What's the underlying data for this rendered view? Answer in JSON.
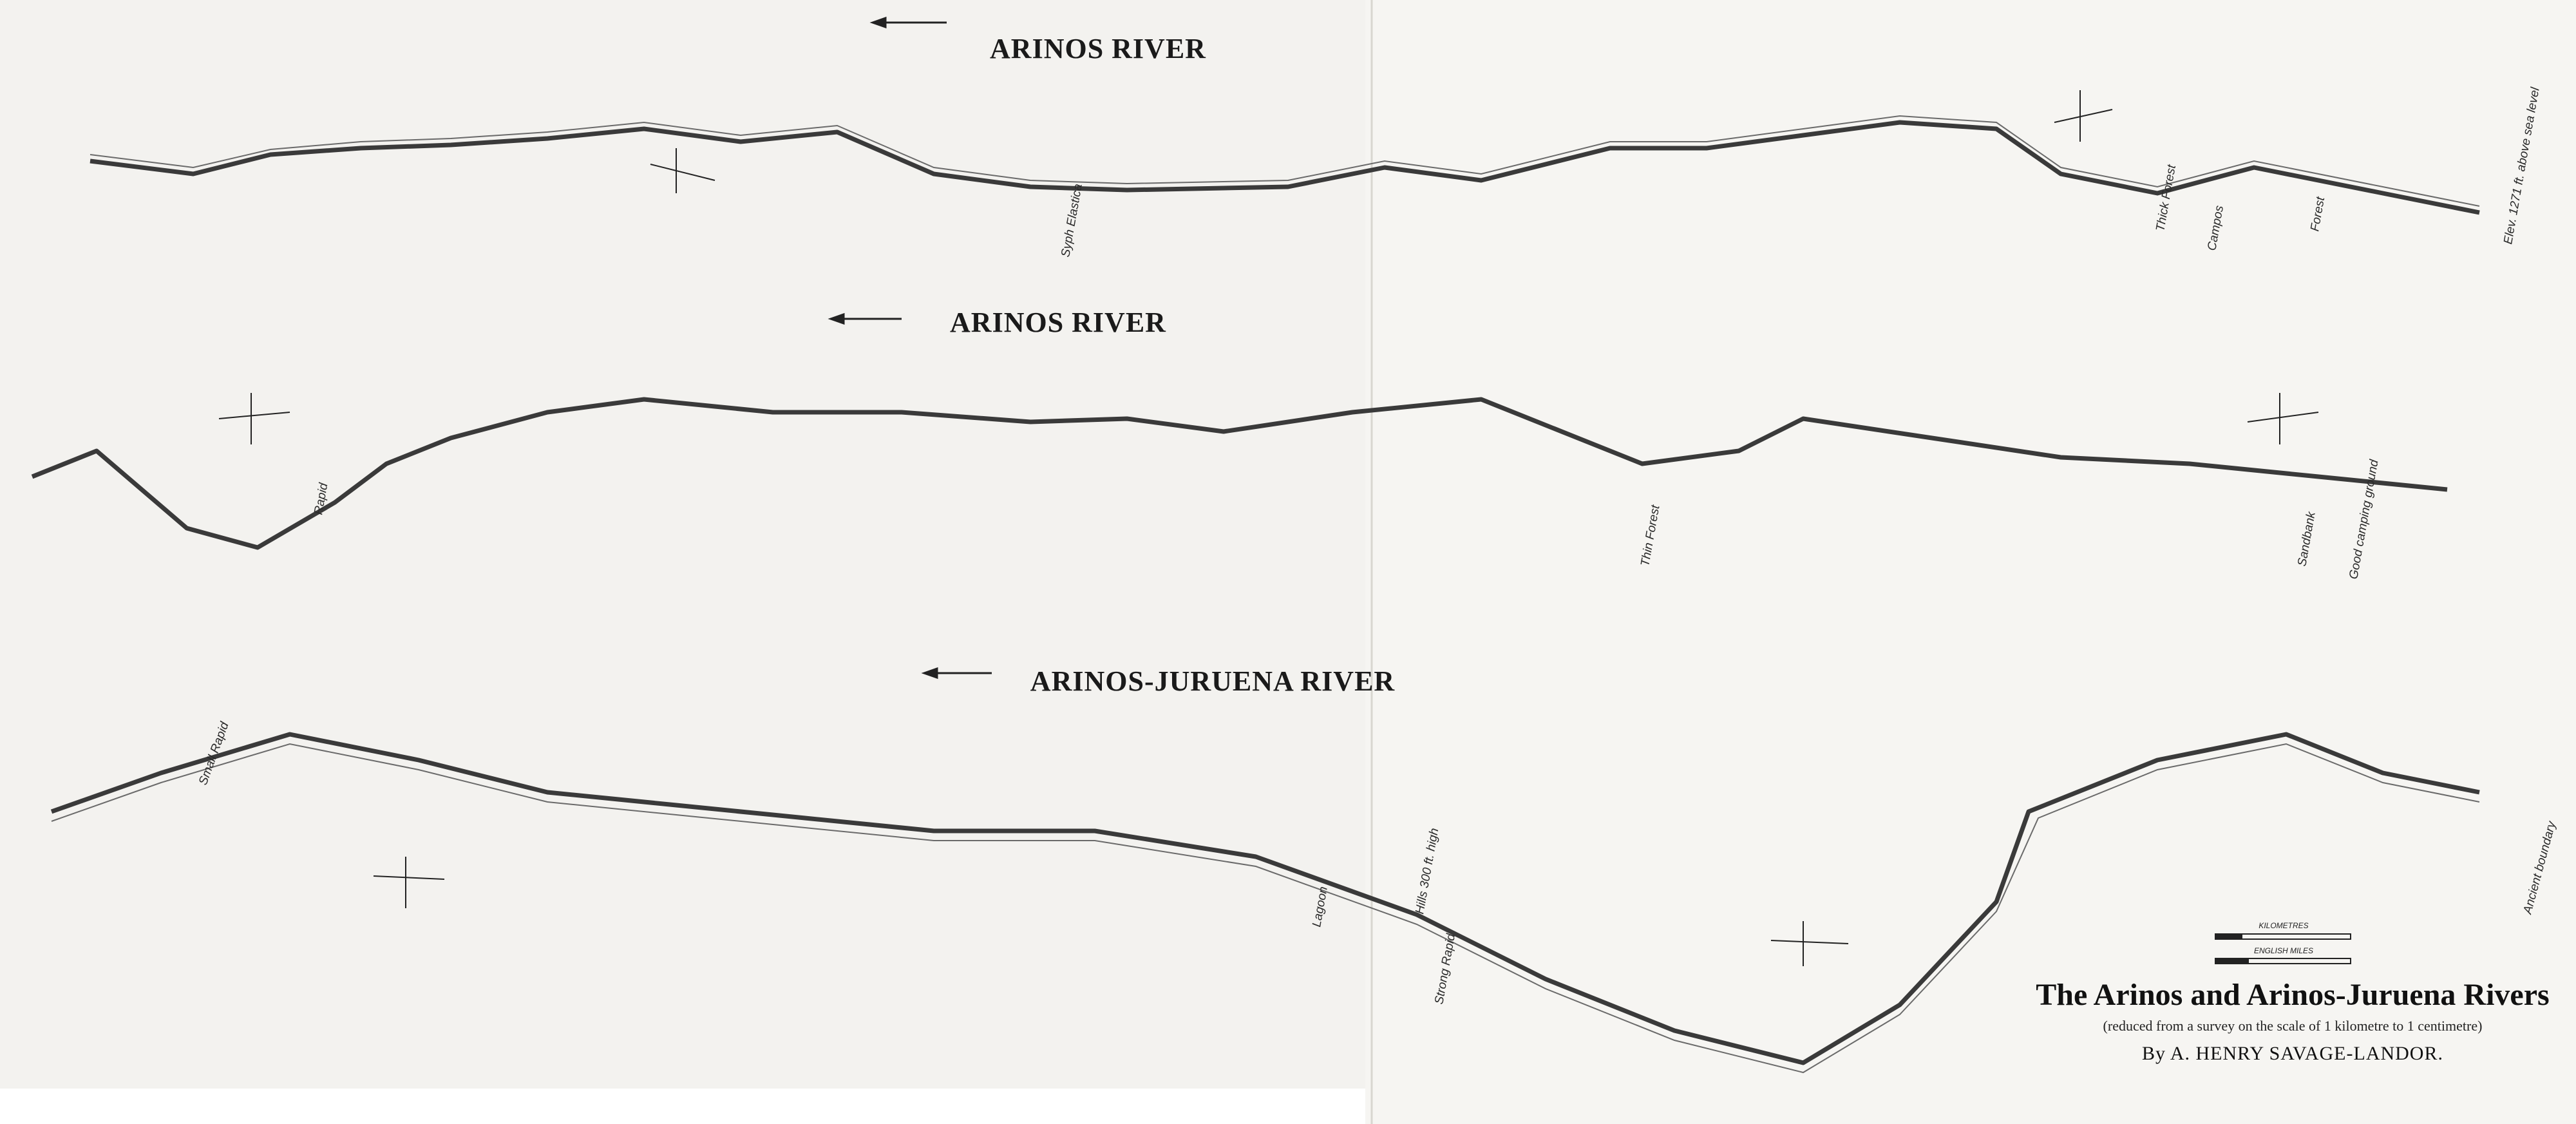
{
  "sections": [
    "ARINOS RIVER",
    "ARINOS RIVER",
    "ARINOS-JURUENA RIVER"
  ],
  "legend": {
    "title": "The Arinos and Arinos-Juruena Rivers",
    "subtitle": "(reduced from a survey on the scale of 1 kilometre to 1 centimetre)",
    "author": "By A. HENRY SAVAGE-LANDOR.",
    "scale_km": "KILOMETRES",
    "scale_miles": "ENGLISH MILES"
  },
  "labels": [
    "Syph Elastica",
    "Campos",
    "Thick Forest",
    "Forest",
    "Thin Forest",
    "Rapid",
    "Sandbank",
    "Good camping ground",
    "Elev. 1271 ft. above sea level",
    "Ancient boundary",
    "Strong Rapid",
    "Hills 300 ft. high",
    "Small Rapid",
    "Lagoon"
  ]
}
